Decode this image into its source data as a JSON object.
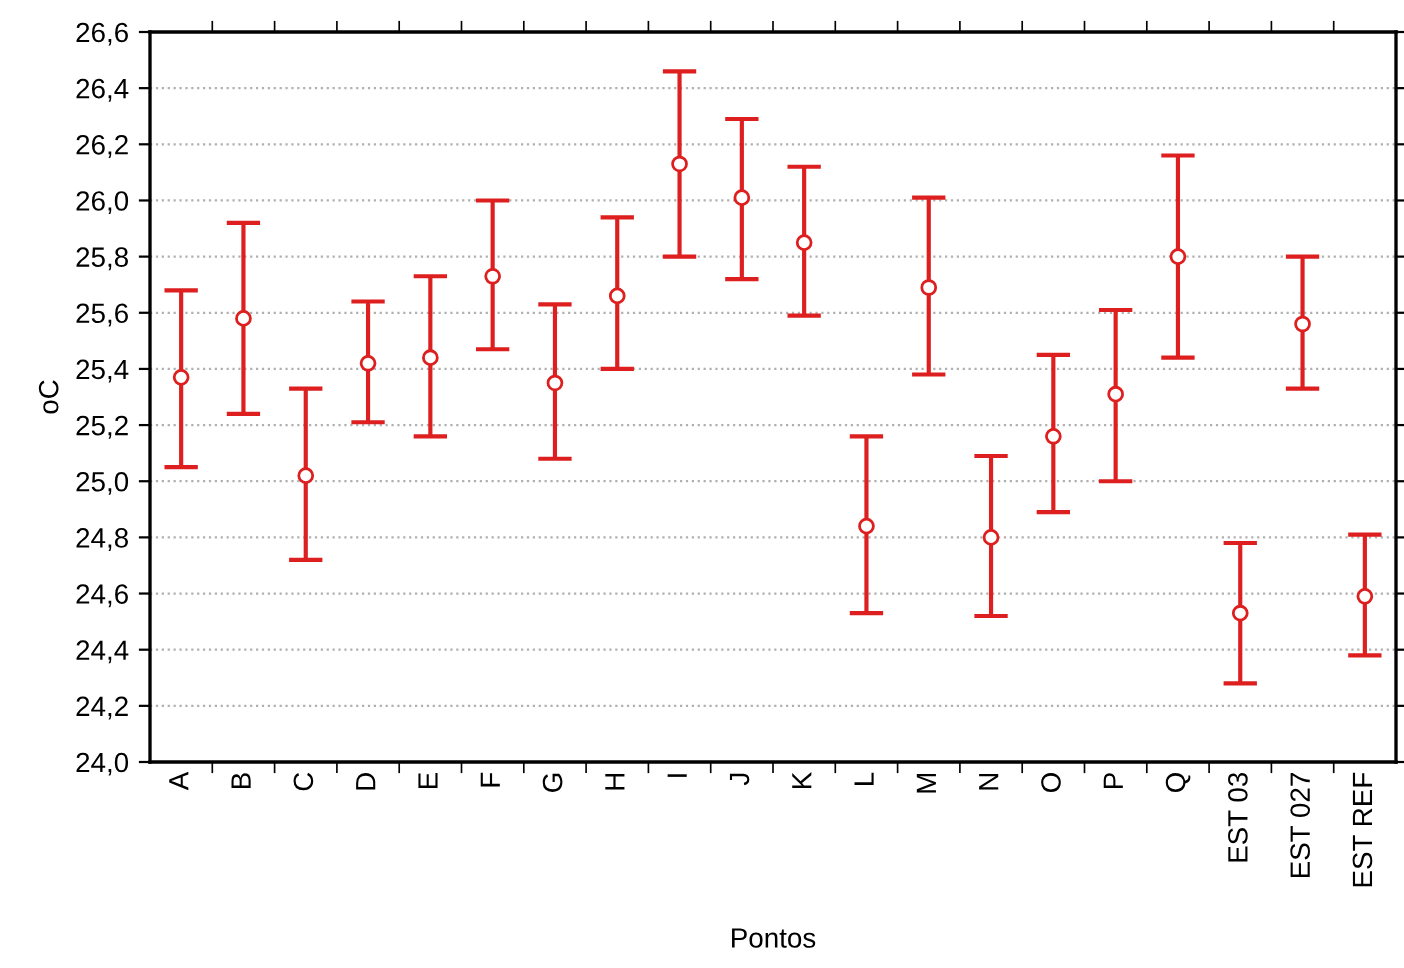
{
  "chart_data": {
    "type": "scatter",
    "xlabel": "Pontos",
    "ylabel": "oC",
    "categories": [
      "A",
      "B",
      "C",
      "D",
      "E",
      "F",
      "G",
      "H",
      "I",
      "J",
      "K",
      "L",
      "M",
      "N",
      "O",
      "P",
      "Q",
      "EST 03",
      "EST 027",
      "EST REF"
    ],
    "series": [
      {
        "color": "#dd1f1f",
        "values": [
          25.37,
          25.58,
          25.02,
          25.42,
          25.44,
          25.73,
          25.35,
          25.66,
          26.13,
          26.01,
          25.85,
          24.84,
          25.69,
          24.8,
          25.16,
          25.31,
          25.8,
          24.53,
          25.56,
          24.59
        ],
        "errors": [
          [
            25.05,
            25.68
          ],
          [
            25.24,
            25.92
          ],
          [
            24.72,
            25.33
          ],
          [
            25.21,
            25.64
          ],
          [
            25.16,
            25.73
          ],
          [
            25.47,
            26.0
          ],
          [
            25.08,
            25.63
          ],
          [
            25.4,
            25.94
          ],
          [
            25.8,
            26.46
          ],
          [
            25.72,
            26.29
          ],
          [
            25.59,
            26.12
          ],
          [
            24.53,
            25.16
          ],
          [
            25.38,
            26.01
          ],
          [
            24.52,
            25.09
          ],
          [
            24.89,
            25.45
          ],
          [
            25.0,
            25.61
          ],
          [
            25.44,
            26.16
          ],
          [
            24.28,
            24.78
          ],
          [
            25.33,
            25.8
          ],
          [
            24.38,
            24.81
          ]
        ]
      }
    ],
    "ylim": [
      24.0,
      26.6
    ],
    "yticks": [
      {
        "value": 24.0,
        "label": "24,0"
      },
      {
        "value": 24.2,
        "label": "24,2"
      },
      {
        "value": 24.4,
        "label": "24,4"
      },
      {
        "value": 24.6,
        "label": "24,6"
      },
      {
        "value": 24.8,
        "label": "24,8"
      },
      {
        "value": 25.0,
        "label": "25,0"
      },
      {
        "value": 25.2,
        "label": "25,2"
      },
      {
        "value": 25.4,
        "label": "25,4"
      },
      {
        "value": 25.6,
        "label": "25,6"
      },
      {
        "value": 25.8,
        "label": "25,8"
      },
      {
        "value": 26.0,
        "label": "26,0"
      },
      {
        "value": 26.2,
        "label": "26,2"
      },
      {
        "value": 26.4,
        "label": "26,4"
      },
      {
        "value": 26.6,
        "label": "26,6"
      }
    ],
    "grid": "y",
    "marker": "circle",
    "legend": false
  }
}
